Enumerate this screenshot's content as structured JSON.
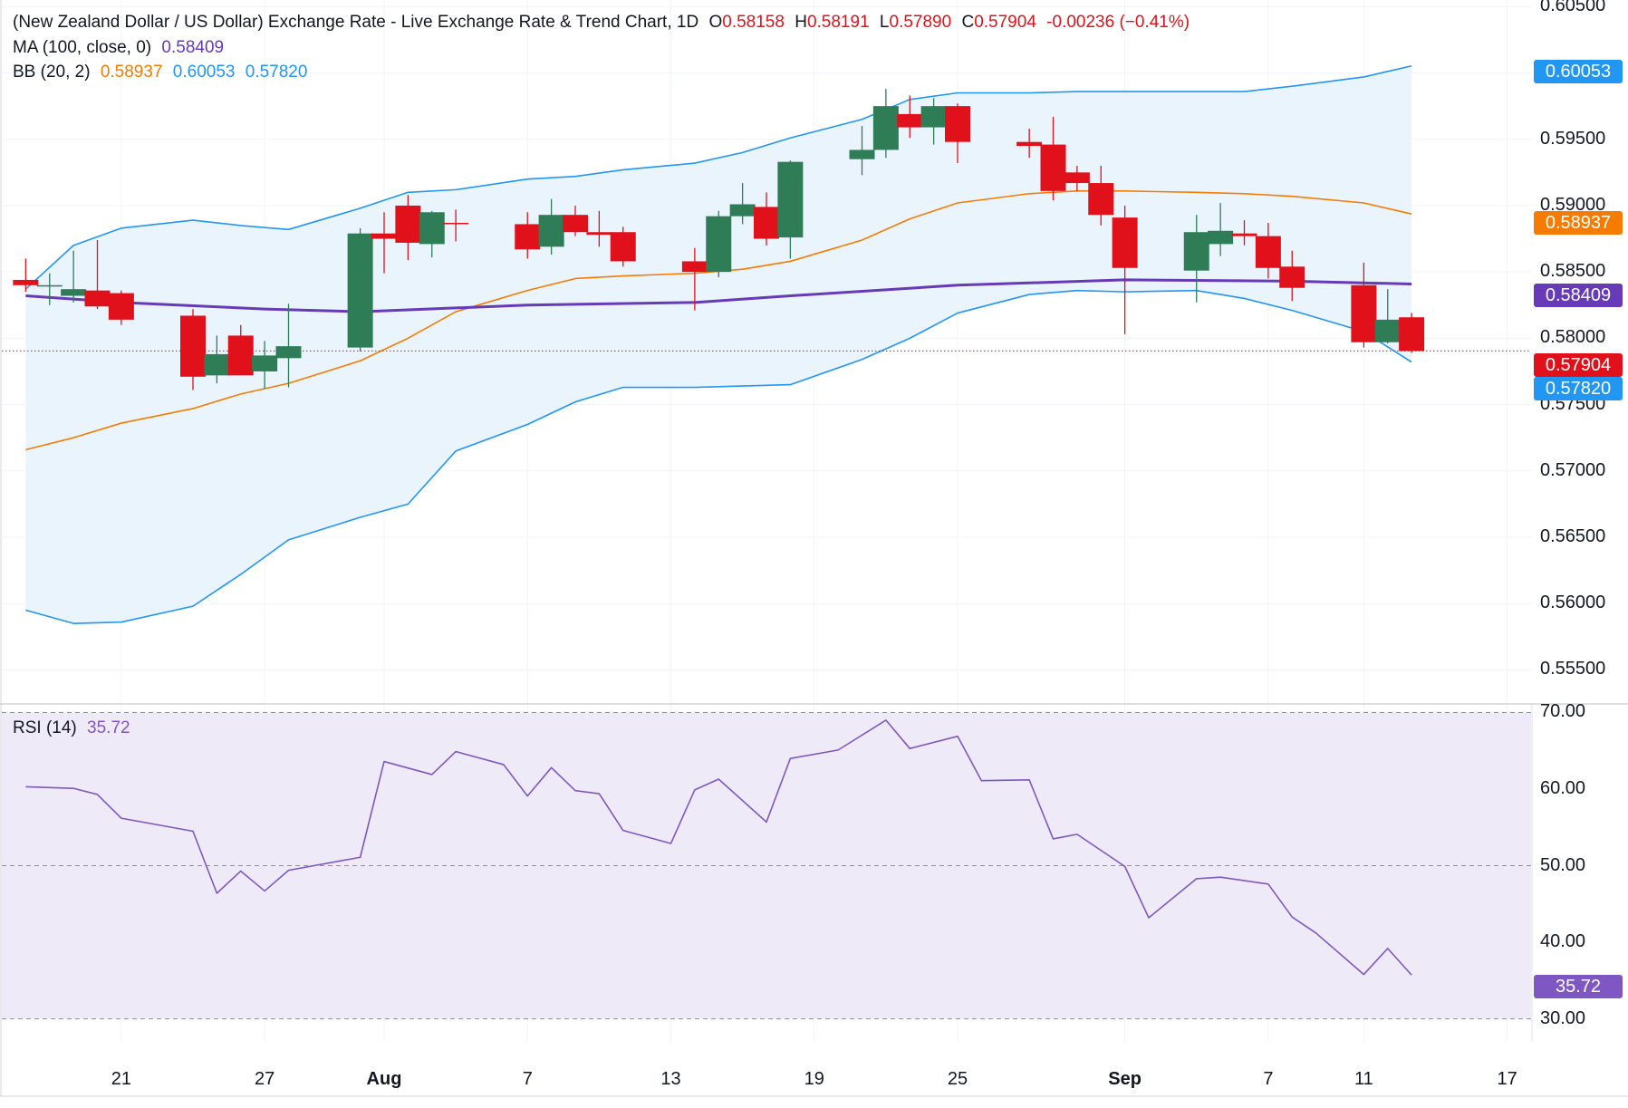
{
  "header": {
    "title": "(New Zealand Dollar / US Dollar) Exchange Rate - Live Exchange Rate & Trend Chart, 1D",
    "o_label": "O",
    "o_value": "0.58158",
    "h_label": "H",
    "h_value": "0.58191",
    "l_label": "L",
    "l_value": "0.57890",
    "c_label": "C",
    "c_value": "0.57904",
    "change": "-0.00236 (−0.41%)"
  },
  "ma_legend": {
    "label": "MA (100, close, 0)",
    "value": "0.58409"
  },
  "bb_legend": {
    "label": "BB (20, 2)",
    "mid": "0.58937",
    "upper": "0.60053",
    "lower": "0.57820"
  },
  "rsi_legend": {
    "label": "RSI (14)",
    "value": "35.72"
  },
  "price_tags": {
    "upper": "0.60053",
    "mid": "0.58937",
    "ma": "0.58409",
    "last": "0.57904",
    "lower": "0.57820"
  },
  "rsi_tag": "35.72",
  "colors": {
    "up": "#2e7d57",
    "down": "#e0111b",
    "ma": "#673ab7",
    "bb_mid": "#f57c00",
    "bb_band": "#2196f3",
    "bb_fill": "#eaf4fd",
    "rsi_line": "#7e57c2",
    "rsi_fill": "#efeaf8",
    "last_price": "#e0111b",
    "lower_tag": "#2196f3",
    "upper_tag": "#2196f3",
    "grid": "#f0f3fa"
  },
  "chart_data": [
    {
      "type": "candlestick",
      "title": "(New Zealand Dollar / US Dollar) Exchange Rate - Live Exchange Rate & Trend Chart, 1D",
      "ylim": [
        0.5525,
        0.6055
      ],
      "y_ticks": [
        "0.60500",
        "0.60000",
        "0.59500",
        "0.59000",
        "0.58500",
        "0.58000",
        "0.57500",
        "0.57000",
        "0.56500",
        "0.56000",
        "0.55500"
      ],
      "x_ticks": [
        {
          "label": "21",
          "date": "2023-07-21"
        },
        {
          "label": "27",
          "date": "2023-07-27"
        },
        {
          "label": "Aug",
          "date": "2023-08-01"
        },
        {
          "label": "7",
          "date": "2023-08-07"
        },
        {
          "label": "13",
          "date": "2023-08-13"
        },
        {
          "label": "19",
          "date": "2023-08-19"
        },
        {
          "label": "25",
          "date": "2023-08-25"
        },
        {
          "label": "Sep",
          "date": "2023-09-01"
        },
        {
          "label": "7",
          "date": "2023-09-07"
        },
        {
          "label": "11",
          "date": "2023-09-11"
        },
        {
          "label": "17",
          "date": "2023-09-17"
        }
      ],
      "x_range": [
        "2023-07-17",
        "2023-09-18"
      ],
      "candles": [
        {
          "date": "2023-07-17",
          "o": 0.5844,
          "h": 0.586,
          "l": 0.5835,
          "c": 0.584
        },
        {
          "date": "2023-07-18",
          "o": 0.584,
          "h": 0.5849,
          "l": 0.5825,
          "c": 0.584
        },
        {
          "date": "2023-07-19",
          "o": 0.5832,
          "h": 0.5866,
          "l": 0.5827,
          "c": 0.5837
        },
        {
          "date": "2023-07-20",
          "o": 0.5836,
          "h": 0.5874,
          "l": 0.5822,
          "c": 0.5824
        },
        {
          "date": "2023-07-21",
          "o": 0.5834,
          "h": 0.5836,
          "l": 0.581,
          "c": 0.5814
        },
        {
          "date": "2023-07-24",
          "o": 0.5817,
          "h": 0.5822,
          "l": 0.5761,
          "c": 0.5771
        },
        {
          "date": "2023-07-25",
          "o": 0.5772,
          "h": 0.5802,
          "l": 0.5766,
          "c": 0.5788
        },
        {
          "date": "2023-07-26",
          "o": 0.5802,
          "h": 0.581,
          "l": 0.5772,
          "c": 0.5772
        },
        {
          "date": "2023-07-27",
          "o": 0.5775,
          "h": 0.5798,
          "l": 0.5762,
          "c": 0.5787
        },
        {
          "date": "2023-07-28",
          "o": 0.5785,
          "h": 0.5826,
          "l": 0.5763,
          "c": 0.5794
        },
        {
          "date": "2023-07-31",
          "o": 0.5793,
          "h": 0.5883,
          "l": 0.579,
          "c": 0.5879
        },
        {
          "date": "2023-08-01",
          "o": 0.5879,
          "h": 0.5895,
          "l": 0.5849,
          "c": 0.5875
        },
        {
          "date": "2023-08-02",
          "o": 0.59,
          "h": 0.5908,
          "l": 0.5859,
          "c": 0.5872
        },
        {
          "date": "2023-08-03",
          "o": 0.5871,
          "h": 0.5896,
          "l": 0.5861,
          "c": 0.5895
        },
        {
          "date": "2023-08-04",
          "o": 0.5887,
          "h": 0.5897,
          "l": 0.5873,
          "c": 0.5886
        },
        {
          "date": "2023-08-07",
          "o": 0.5886,
          "h": 0.5895,
          "l": 0.586,
          "c": 0.5867
        },
        {
          "date": "2023-08-08",
          "o": 0.5869,
          "h": 0.5905,
          "l": 0.5863,
          "c": 0.5893
        },
        {
          "date": "2023-08-09",
          "o": 0.5893,
          "h": 0.59,
          "l": 0.5877,
          "c": 0.588
        },
        {
          "date": "2023-08-10",
          "o": 0.588,
          "h": 0.5896,
          "l": 0.5869,
          "c": 0.5878
        },
        {
          "date": "2023-08-11",
          "o": 0.588,
          "h": 0.5884,
          "l": 0.5854,
          "c": 0.5858
        },
        {
          "date": "2023-08-14",
          "o": 0.5858,
          "h": 0.5868,
          "l": 0.5821,
          "c": 0.585
        },
        {
          "date": "2023-08-15",
          "o": 0.585,
          "h": 0.5896,
          "l": 0.5846,
          "c": 0.5892
        },
        {
          "date": "2023-08-16",
          "o": 0.5892,
          "h": 0.5917,
          "l": 0.5886,
          "c": 0.5901
        },
        {
          "date": "2023-08-17",
          "o": 0.5899,
          "h": 0.591,
          "l": 0.587,
          "c": 0.5875
        },
        {
          "date": "2023-08-18",
          "o": 0.5876,
          "h": 0.5934,
          "l": 0.586,
          "c": 0.5933
        },
        {
          "date": "2023-08-21",
          "o": 0.5935,
          "h": 0.596,
          "l": 0.5923,
          "c": 0.5942
        },
        {
          "date": "2023-08-22",
          "o": 0.5942,
          "h": 0.5988,
          "l": 0.5936,
          "c": 0.5975
        },
        {
          "date": "2023-08-23",
          "o": 0.5969,
          "h": 0.5983,
          "l": 0.5951,
          "c": 0.5959
        },
        {
          "date": "2023-08-24",
          "o": 0.5959,
          "h": 0.5981,
          "l": 0.5946,
          "c": 0.5975
        },
        {
          "date": "2023-08-25",
          "o": 0.5975,
          "h": 0.5977,
          "l": 0.5932,
          "c": 0.5948
        },
        {
          "date": "2023-08-28",
          "o": 0.5948,
          "h": 0.5958,
          "l": 0.5936,
          "c": 0.5945
        },
        {
          "date": "2023-08-29",
          "o": 0.5946,
          "h": 0.5967,
          "l": 0.5904,
          "c": 0.5911
        },
        {
          "date": "2023-08-30",
          "o": 0.5925,
          "h": 0.593,
          "l": 0.5911,
          "c": 0.5917
        },
        {
          "date": "2023-08-31",
          "o": 0.5917,
          "h": 0.593,
          "l": 0.5885,
          "c": 0.5893
        },
        {
          "date": "2023-09-01",
          "o": 0.5891,
          "h": 0.59,
          "l": 0.5803,
          "c": 0.5853
        },
        {
          "date": "2023-09-04",
          "o": 0.5851,
          "h": 0.5893,
          "l": 0.5827,
          "c": 0.588
        },
        {
          "date": "2023-09-05",
          "o": 0.5871,
          "h": 0.5902,
          "l": 0.5862,
          "c": 0.5881
        },
        {
          "date": "2023-09-06",
          "o": 0.5879,
          "h": 0.5889,
          "l": 0.587,
          "c": 0.5877
        },
        {
          "date": "2023-09-07",
          "o": 0.5877,
          "h": 0.5887,
          "l": 0.5845,
          "c": 0.5853
        },
        {
          "date": "2023-09-08",
          "o": 0.5854,
          "h": 0.5866,
          "l": 0.5828,
          "c": 0.5838
        },
        {
          "date": "2023-09-11",
          "o": 0.584,
          "h": 0.5857,
          "l": 0.5793,
          "c": 0.5797
        },
        {
          "date": "2023-09-12",
          "o": 0.5797,
          "h": 0.5837,
          "l": 0.5796,
          "c": 0.5814
        },
        {
          "date": "2023-09-13",
          "o": 0.58158,
          "h": 0.58191,
          "l": 0.5789,
          "c": 0.57904
        }
      ],
      "ma100": {
        "name": "MA (100, close, 0)",
        "values": [
          [
            "2023-07-17",
            0.5832
          ],
          [
            "2023-07-21",
            0.5827
          ],
          [
            "2023-07-27",
            0.5822
          ],
          [
            "2023-07-31",
            0.582
          ],
          [
            "2023-08-07",
            0.5825
          ],
          [
            "2023-08-14",
            0.5827
          ],
          [
            "2023-08-18",
            0.5832
          ],
          [
            "2023-08-25",
            0.584
          ],
          [
            "2023-09-01",
            0.5844
          ],
          [
            "2023-09-08",
            0.5843
          ],
          [
            "2023-09-13",
            0.58409
          ]
        ]
      },
      "bollinger": {
        "name": "BB (20, 2)",
        "dates": [
          "2023-07-17",
          "2023-07-19",
          "2023-07-21",
          "2023-07-24",
          "2023-07-26",
          "2023-07-28",
          "2023-07-31",
          "2023-08-02",
          "2023-08-04",
          "2023-08-07",
          "2023-08-09",
          "2023-08-11",
          "2023-08-14",
          "2023-08-16",
          "2023-08-18",
          "2023-08-21",
          "2023-08-23",
          "2023-08-25",
          "2023-08-28",
          "2023-08-30",
          "2023-09-01",
          "2023-09-04",
          "2023-09-06",
          "2023-09-08",
          "2023-09-11",
          "2023-09-13"
        ],
        "upper": [
          0.5837,
          0.587,
          0.5883,
          0.5889,
          0.5885,
          0.5882,
          0.5898,
          0.591,
          0.5912,
          0.592,
          0.5922,
          0.5927,
          0.5932,
          0.594,
          0.5951,
          0.5965,
          0.598,
          0.5985,
          0.5985,
          0.5986,
          0.5986,
          0.5986,
          0.5986,
          0.599,
          0.5997,
          0.60053
        ],
        "middle": [
          0.5716,
          0.5725,
          0.5736,
          0.5747,
          0.5758,
          0.5766,
          0.5783,
          0.58,
          0.582,
          0.5836,
          0.5845,
          0.5847,
          0.5849,
          0.5852,
          0.5858,
          0.5874,
          0.589,
          0.5902,
          0.5909,
          0.5911,
          0.5911,
          0.591,
          0.5909,
          0.5907,
          0.5902,
          0.58937
        ],
        "lower": [
          0.5595,
          0.5585,
          0.5586,
          0.5598,
          0.5622,
          0.5648,
          0.5665,
          0.5675,
          0.5715,
          0.5735,
          0.5752,
          0.5763,
          0.5763,
          0.5764,
          0.5765,
          0.5784,
          0.58,
          0.5819,
          0.5833,
          0.5836,
          0.5835,
          0.5836,
          0.583,
          0.5821,
          0.5805,
          0.5782
        ]
      }
    },
    {
      "type": "line",
      "title": "RSI (14)",
      "ylim": [
        27,
        71
      ],
      "y_ticks": [
        "70.00",
        "60.00",
        "50.00",
        "40.00",
        "30.00"
      ],
      "bands": [
        30,
        50,
        70
      ],
      "series": [
        {
          "name": "RSI (14)",
          "values": [
            [
              "2023-07-17",
              60.3
            ],
            [
              "2023-07-19",
              60.1
            ],
            [
              "2023-07-20",
              59.3
            ],
            [
              "2023-07-21",
              56.2
            ],
            [
              "2023-07-24",
              54.5
            ],
            [
              "2023-07-25",
              46.4
            ],
            [
              "2023-07-26",
              49.3
            ],
            [
              "2023-07-27",
              46.7
            ],
            [
              "2023-07-28",
              49.4
            ],
            [
              "2023-07-31",
              51.1
            ],
            [
              "2023-08-01",
              63.6
            ],
            [
              "2023-08-03",
              61.9
            ],
            [
              "2023-08-04",
              64.9
            ],
            [
              "2023-08-06",
              63.2
            ],
            [
              "2023-08-07",
              59.1
            ],
            [
              "2023-08-08",
              62.8
            ],
            [
              "2023-08-09",
              59.8
            ],
            [
              "2023-08-10",
              59.4
            ],
            [
              "2023-08-11",
              54.6
            ],
            [
              "2023-08-13",
              52.9
            ],
            [
              "2023-08-14",
              59.9
            ],
            [
              "2023-08-15",
              61.3
            ],
            [
              "2023-08-17",
              55.7
            ],
            [
              "2023-08-18",
              64.0
            ],
            [
              "2023-08-20",
              65.1
            ],
            [
              "2023-08-22",
              69.0
            ],
            [
              "2023-08-23",
              65.3
            ],
            [
              "2023-08-25",
              66.9
            ],
            [
              "2023-08-26",
              61.1
            ],
            [
              "2023-08-28",
              61.2
            ],
            [
              "2023-08-29",
              53.5
            ],
            [
              "2023-08-30",
              54.1
            ],
            [
              "2023-09-01",
              49.9
            ],
            [
              "2023-09-02",
              43.2
            ],
            [
              "2023-09-04",
              48.3
            ],
            [
              "2023-09-05",
              48.5
            ],
            [
              "2023-09-07",
              47.6
            ],
            [
              "2023-09-08",
              43.3
            ],
            [
              "2023-09-09",
              41.2
            ],
            [
              "2023-09-11",
              35.8
            ],
            [
              "2023-09-12",
              39.2
            ],
            [
              "2023-09-13",
              35.72
            ]
          ]
        }
      ]
    }
  ]
}
